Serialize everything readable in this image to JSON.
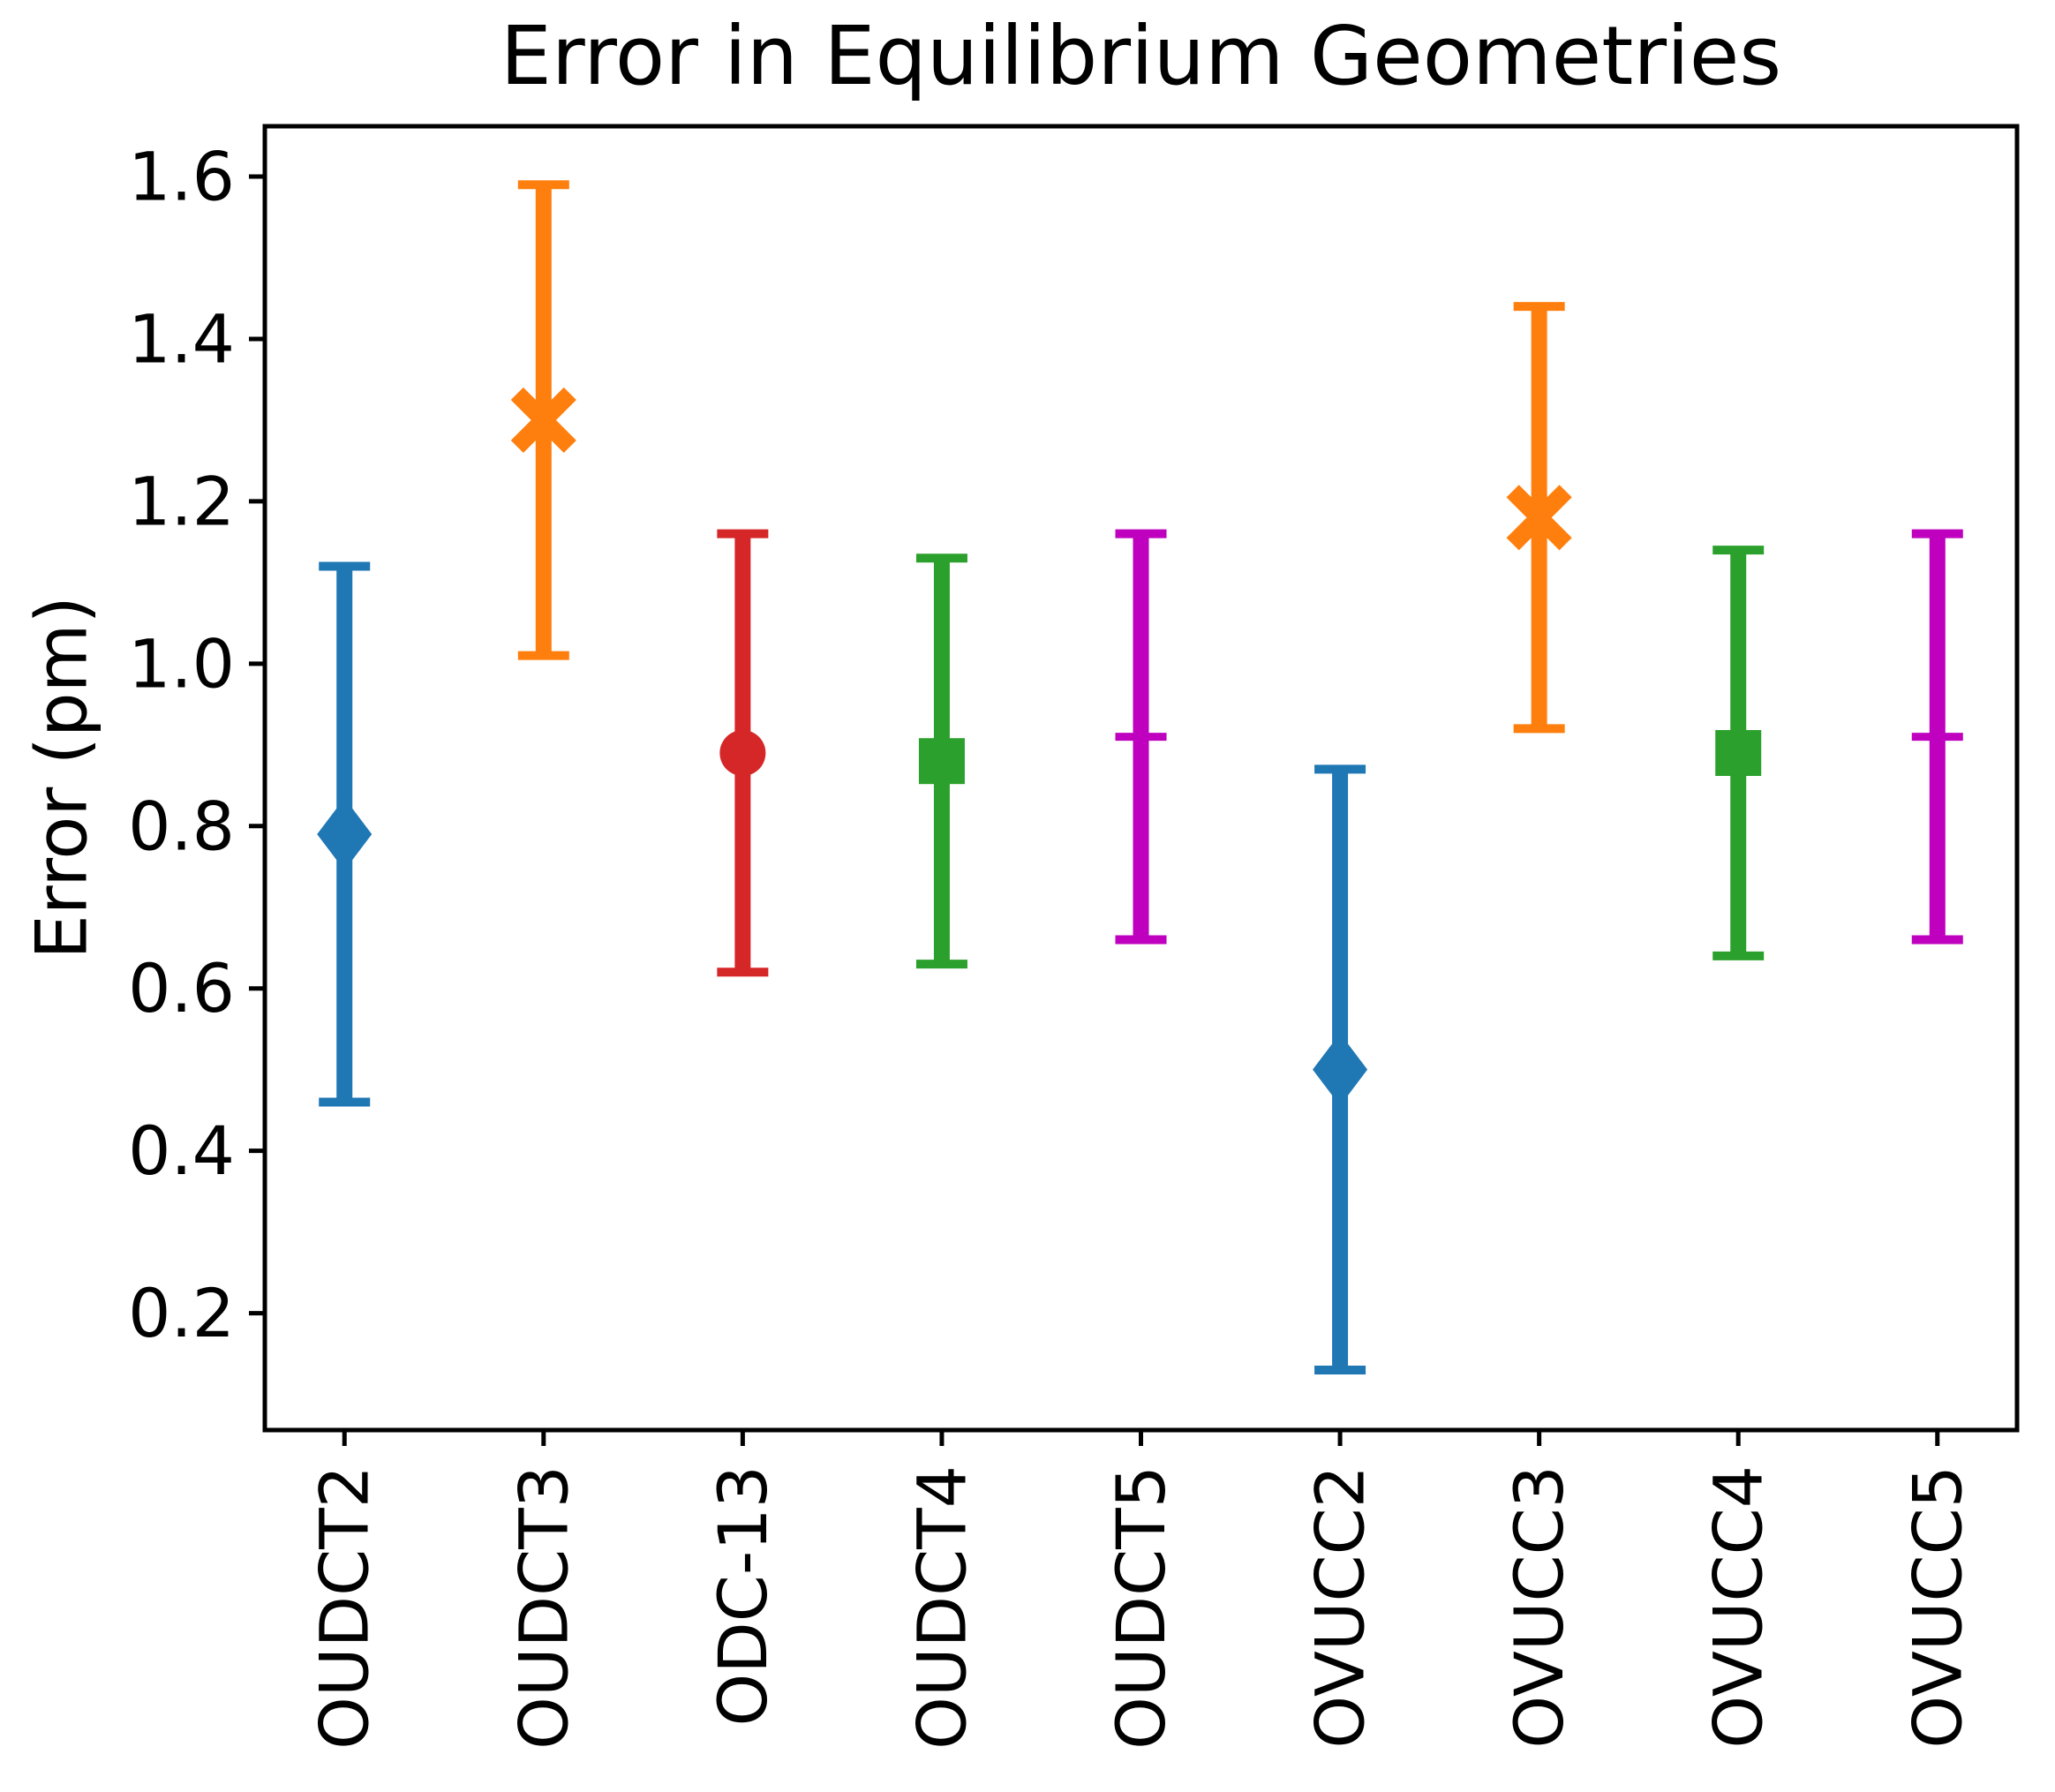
{
  "figure": {
    "title": "Error in Equilibrium Geometries",
    "y_axis_label": "Error (pm)"
  },
  "chart_data": {
    "type": "errorbar",
    "title": "Error in Equilibrium Geometries",
    "xlabel": "",
    "ylabel": "Error (pm)",
    "categories": [
      "OUDCT2",
      "OUDCT3",
      "ODC-13",
      "OUDCT4",
      "OUDCT5",
      "OVUCC2",
      "OVUCC3",
      "OVUCC4",
      "OVUCC5"
    ],
    "series": [
      {
        "name": "OUDCT2",
        "value": 0.79,
        "error": 0.33,
        "upper": 1.12,
        "lower": 0.46,
        "color": "#1f77b4",
        "marker": "diamond"
      },
      {
        "name": "OUDCT3",
        "value": 1.3,
        "error": 0.29,
        "upper": 1.59,
        "lower": 1.01,
        "color": "#ff7f0e",
        "marker": "x"
      },
      {
        "name": "ODC-13",
        "value": 0.89,
        "error": 0.27,
        "upper": 1.16,
        "lower": 0.62,
        "color": "#d62728",
        "marker": "circle"
      },
      {
        "name": "OUDCT4",
        "value": 0.88,
        "error": 0.25,
        "upper": 1.13,
        "lower": 0.63,
        "color": "#2ca02c",
        "marker": "square"
      },
      {
        "name": "OUDCT5",
        "value": 0.91,
        "error": 0.25,
        "upper": 1.16,
        "lower": 0.66,
        "color": "#bf00bf",
        "marker": "plus"
      },
      {
        "name": "OVUCC2",
        "value": 0.5,
        "error": 0.37,
        "upper": 0.87,
        "lower": 0.13,
        "color": "#1f77b4",
        "marker": "diamond"
      },
      {
        "name": "OVUCC3",
        "value": 1.18,
        "error": 0.26,
        "upper": 1.44,
        "lower": 0.92,
        "color": "#ff7f0e",
        "marker": "x"
      },
      {
        "name": "OVUCC4",
        "value": 0.89,
        "error": 0.25,
        "upper": 1.14,
        "lower": 0.64,
        "color": "#2ca02c",
        "marker": "square"
      },
      {
        "name": "OVUCC5",
        "value": 0.91,
        "error": 0.25,
        "upper": 1.16,
        "lower": 0.66,
        "color": "#bf00bf",
        "marker": "plus"
      }
    ],
    "yticks": [
      0.2,
      0.4,
      0.6,
      0.8,
      1.0,
      1.2,
      1.4,
      1.6
    ],
    "ytick_labels": [
      "0.2",
      "0.4",
      "0.6",
      "0.8",
      "1.0",
      "1.2",
      "1.4",
      "1.6"
    ],
    "ylim": [
      0.056,
      1.662
    ],
    "grid": false,
    "legend": false,
    "axis_color": "#000000",
    "background_color": "#ffffff"
  }
}
